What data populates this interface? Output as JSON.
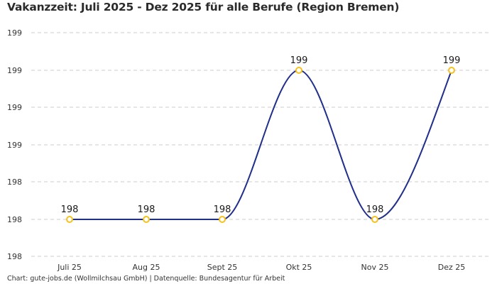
{
  "title": "Vakanzzeit: Juli 2025 - Dez 2025 für alle Berufe (Region Bremen)",
  "footer": "Chart: gute-jobs.de (Wollmilchsau GmbH) | Datenquelle: Bundesagentur für Arbeit",
  "colors": {
    "line": "#1f2f8a",
    "marker": "#f5c21b",
    "grid": "#cccccc"
  },
  "chart_data": {
    "type": "line",
    "title": "Vakanzzeit: Juli 2025 - Dez 2025 für alle Berufe (Region Bremen)",
    "xlabel": "",
    "ylabel": "",
    "categories": [
      "Juli 25",
      "Aug 25",
      "Sept 25",
      "Okt 25",
      "Nov 25",
      "Dez 25"
    ],
    "series": [
      {
        "name": "Vakanzzeit",
        "values": [
          198,
          198,
          198,
          199,
          198,
          199
        ],
        "labels": [
          "198",
          "198",
          "198",
          "199",
          "198",
          "199"
        ]
      }
    ],
    "y_tick_labels": [
      "199",
      "199",
      "199",
      "199",
      "198",
      "198",
      "198"
    ],
    "grid": true,
    "legend": "none"
  }
}
